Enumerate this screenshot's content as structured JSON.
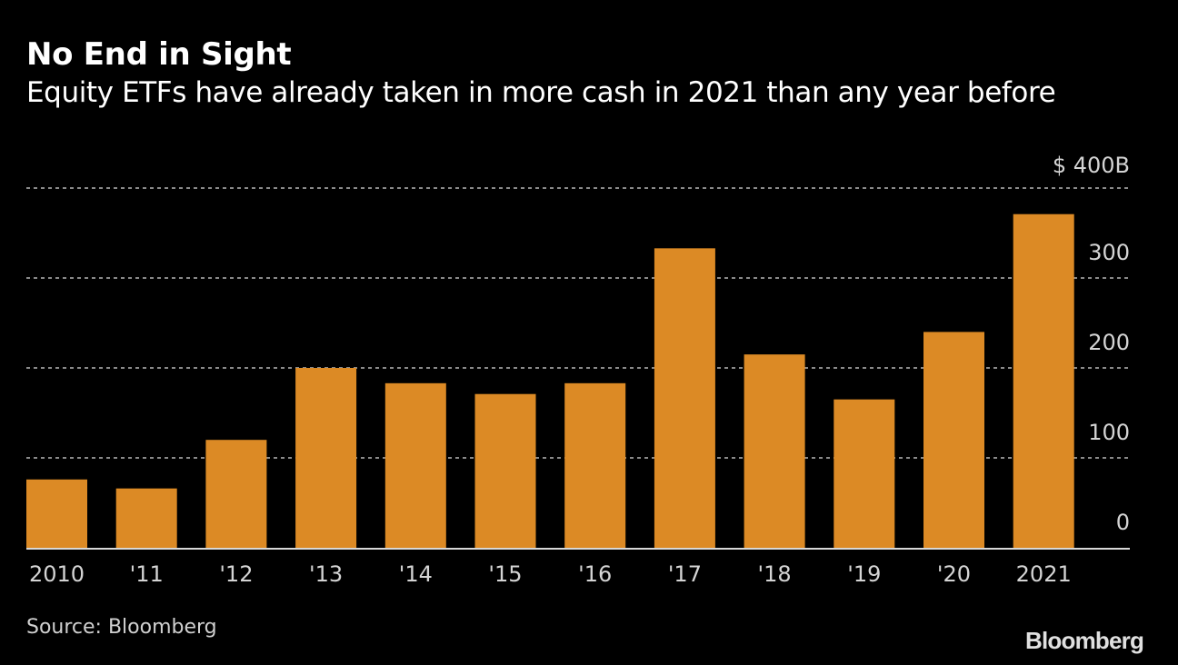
{
  "title": "No End in Sight",
  "subtitle": "Equity ETFs have already taken in more cash in 2021 than any year before",
  "source": "Source: Bloomberg",
  "logo": "Bloomberg",
  "colors": {
    "bar": "#dc8a25",
    "background": "#000000",
    "grid": "#8a8a8a",
    "axis": "#d8d8d8",
    "text": "#ffffff"
  },
  "chart_data": {
    "type": "bar",
    "title": "No End in Sight",
    "subtitle": "Equity ETFs have already taken in more cash in 2021 than any year before",
    "xlabel": "",
    "ylabel": "",
    "unit": "$ billions",
    "categories": [
      "2010",
      "'11",
      "'12",
      "'13",
      "'14",
      "'15",
      "'16",
      "'17",
      "'18",
      "'19",
      "'20",
      "2021"
    ],
    "values": [
      76,
      66,
      120,
      200,
      183,
      171,
      183,
      333,
      215,
      165,
      240,
      371
    ],
    "ylim": [
      0,
      400
    ],
    "yticks": [
      0,
      100,
      200,
      300,
      400
    ],
    "ytick_labels": [
      "0",
      "100",
      "200",
      "300",
      "$ 400B"
    ],
    "y_axis_position": "right",
    "grid": true,
    "legend": "none"
  }
}
